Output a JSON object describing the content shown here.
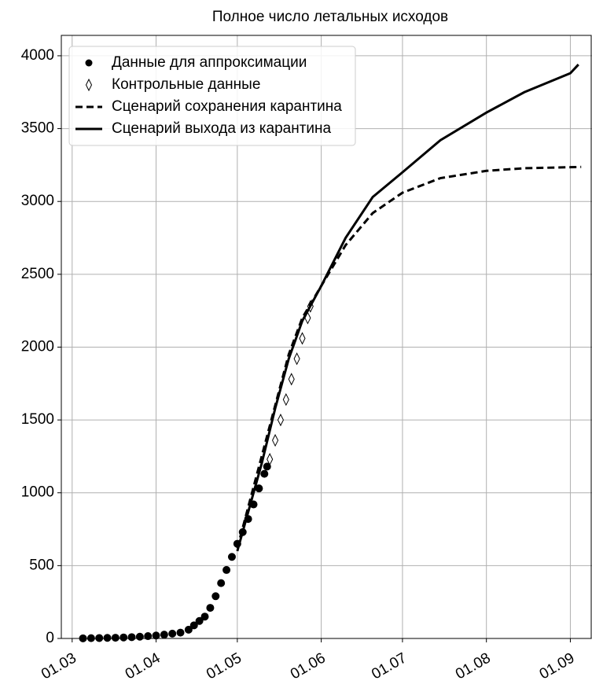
{
  "chart_data": {
    "type": "line",
    "title": "Полное число летальных исходов",
    "xlim": [
      "25.02",
      "09.09"
    ],
    "xticks": [
      "01.03",
      "01.04",
      "01.05",
      "01.06",
      "01.07",
      "01.08",
      "01.09"
    ],
    "ylim": [
      0,
      4140
    ],
    "yticks": [
      0,
      500,
      1000,
      1500,
      2000,
      2500,
      3000,
      3500,
      4000
    ],
    "grid": true,
    "legend": "upper left",
    "series": [
      {
        "name": "Данные для аппроксимации",
        "color": "#000000",
        "marker": "circle",
        "linestyle": "none",
        "x": [
          "05.03",
          "08.03",
          "11.03",
          "14.03",
          "17.03",
          "20.03",
          "23.03",
          "26.03",
          "29.03",
          "01.04",
          "04.04",
          "07.04",
          "10.04",
          "13.04",
          "15.04",
          "17.04",
          "19.04",
          "21.04",
          "23.04",
          "25.04",
          "27.04",
          "29.04",
          "01.05",
          "03.05",
          "05.05",
          "07.05",
          "09.05",
          "11.05",
          "12.05"
        ],
        "values": [
          1,
          2,
          3,
          4,
          5,
          7,
          9,
          12,
          16,
          20,
          26,
          33,
          40,
          60,
          90,
          120,
          150,
          210,
          290,
          380,
          470,
          560,
          650,
          730,
          820,
          920,
          1030,
          1130,
          1180
        ]
      },
      {
        "name": "Контрольные данные",
        "color": "#000000",
        "marker": "diamond",
        "linestyle": "none",
        "x": [
          "13.05",
          "15.05",
          "17.05",
          "19.05",
          "21.05",
          "23.05",
          "25.05",
          "27.05",
          "28.05"
        ],
        "values": [
          1230,
          1360,
          1500,
          1640,
          1780,
          1920,
          2060,
          2200,
          2280
        ]
      },
      {
        "name": "Сценарий сохранения карантина",
        "color": "#000000",
        "marker": "none",
        "linestyle": "dashed",
        "x": [
          "01.05",
          "10.05",
          "15.05",
          "20.05",
          "25.05",
          "01.06",
          "10.06",
          "20.06",
          "01.07",
          "15.07",
          "01.08",
          "15.08",
          "01.09",
          "05.09"
        ],
        "values": [
          620,
          1250,
          1600,
          1950,
          2200,
          2420,
          2700,
          2920,
          3060,
          3160,
          3210,
          3228,
          3235,
          3237
        ]
      },
      {
        "name": "Сценарий выхода из карантина",
        "color": "#000000",
        "marker": "none",
        "linestyle": "solid",
        "x": [
          "01.05",
          "10.05",
          "15.05",
          "20.05",
          "25.05",
          "01.06",
          "10.06",
          "20.06",
          "01.07",
          "15.07",
          "01.08",
          "15.08",
          "01.09",
          "04.09"
        ],
        "values": [
          600,
          1200,
          1580,
          1920,
          2180,
          2420,
          2750,
          3030,
          3200,
          3420,
          3610,
          3750,
          3880,
          3940
        ]
      }
    ]
  }
}
